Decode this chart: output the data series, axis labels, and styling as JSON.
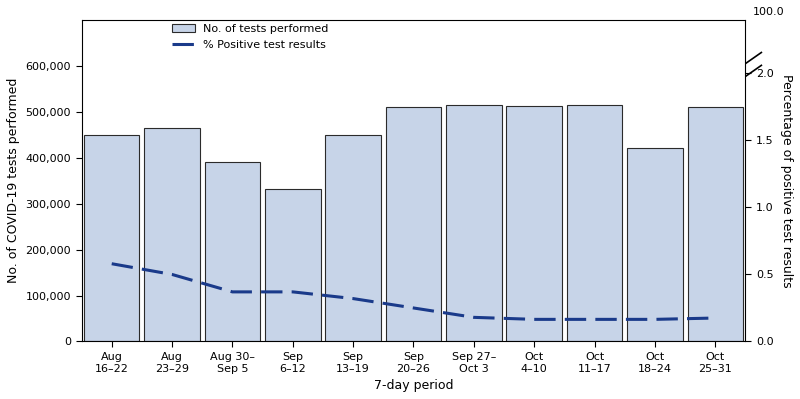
{
  "categories": [
    "Aug\n16–22",
    "Aug\n23–29",
    "Aug 30–\nSep 5",
    "Sep\n6–12",
    "Sep\n13–19",
    "Sep\n20–26",
    "Sep 27–\nOct 3",
    "Oct\n4–10",
    "Oct\n11–17",
    "Oct\n18–24",
    "Oct\n25–31"
  ],
  "bar_values": [
    450000,
    465000,
    390000,
    332000,
    450000,
    510000,
    515000,
    512000,
    515000,
    422000,
    510000
  ],
  "line_values": [
    0.58,
    0.5,
    0.37,
    0.37,
    0.32,
    0.25,
    0.18,
    0.165,
    0.165,
    0.165,
    0.175
  ],
  "bar_color": "#c7d4e8",
  "bar_edge_color": "#2b2b2b",
  "line_color": "#1a3a8a",
  "left_ylabel": "No. of COVID-19 tests performed",
  "right_ylabel": "Percentage of positive test results",
  "xlabel": "7-day period",
  "left_ylim": [
    0,
    700000
  ],
  "right_ylim": [
    0.0,
    2.4
  ],
  "right_yticks": [
    0.0,
    0.5,
    1.0,
    1.5,
    2.0
  ],
  "left_yticks": [
    0,
    100000,
    200000,
    300000,
    400000,
    500000,
    600000
  ],
  "legend_bar_label": "No. of tests performed",
  "legend_line_label": "% Positive test results",
  "axis_fontsize": 9,
  "tick_fontsize": 8,
  "background_color": "#ffffff"
}
